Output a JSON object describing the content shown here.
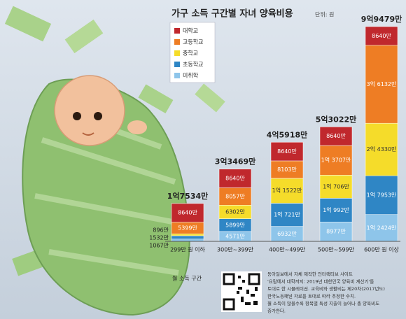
{
  "chart_data": {
    "type": "stacked-bar",
    "title": "가구 소득 구간별 자녀 양육비용",
    "unit": "단위: 원",
    "categories": [
      "299만 원 이하",
      "300만~399만",
      "400만~499만",
      "500만~599만",
      "600만 원 이상"
    ],
    "x_label": "월 소득 구간",
    "series": [
      {
        "name": "미취학",
        "color": "#8ec5ea",
        "values": [
          1067,
          4571,
          6932,
          8977,
          12424
        ],
        "value_labels": [
          "1067만",
          "4571만",
          "6932만",
          "8977만",
          "1억 2424만"
        ]
      },
      {
        "name": "초등학교",
        "color": "#2f86c5",
        "values": [
          1532,
          5899,
          10721,
          10992,
          17953
        ],
        "value_labels": [
          "1532만",
          "5899만",
          "1억 721만",
          "1억 992만",
          "1억 7953만"
        ]
      },
      {
        "name": "중학교",
        "color": "#f5dc2a",
        "values": [
          896,
          6302,
          11522,
          10706,
          24330
        ],
        "value_labels": [
          "896만",
          "6302만",
          "1억 1522만",
          "1억 706만",
          "2억 4330만"
        ]
      },
      {
        "name": "고등학교",
        "color": "#ee7d24",
        "values": [
          5399,
          8057,
          8103,
          13707,
          36132
        ],
        "value_labels": [
          "5399만",
          "8057만",
          "8103만",
          "1억 3707만",
          "3억 6132만"
        ]
      },
      {
        "name": "대학교",
        "color": "#c0282d",
        "values": [
          8640,
          8640,
          8640,
          8640,
          8640
        ],
        "value_labels": [
          "8640만",
          "8640만",
          "8640만",
          "8640만",
          "8640만"
        ]
      }
    ],
    "totals": [
      17534,
      33469,
      45918,
      53022,
      99479
    ],
    "total_labels": [
      "1억7534만",
      "3억3469만",
      "4억5918만",
      "5억3022만",
      "9억9479만"
    ],
    "note": [
      "동아일보에서 자체 제작한 인터랙티브 사이트",
      "'요람에서 대학까지: 2019년 대한민국 양육비 계산기'를",
      "토대로 한 시뮬레이션. 교육비와 생활비는 제20차(2017년도)",
      "한국노동패널 자료를 토대로 따라 추정한 수치.",
      "월 소득이 많을수록 항목별 특성 지출이 늘어나 총 양육비도",
      "증가한다."
    ]
  }
}
